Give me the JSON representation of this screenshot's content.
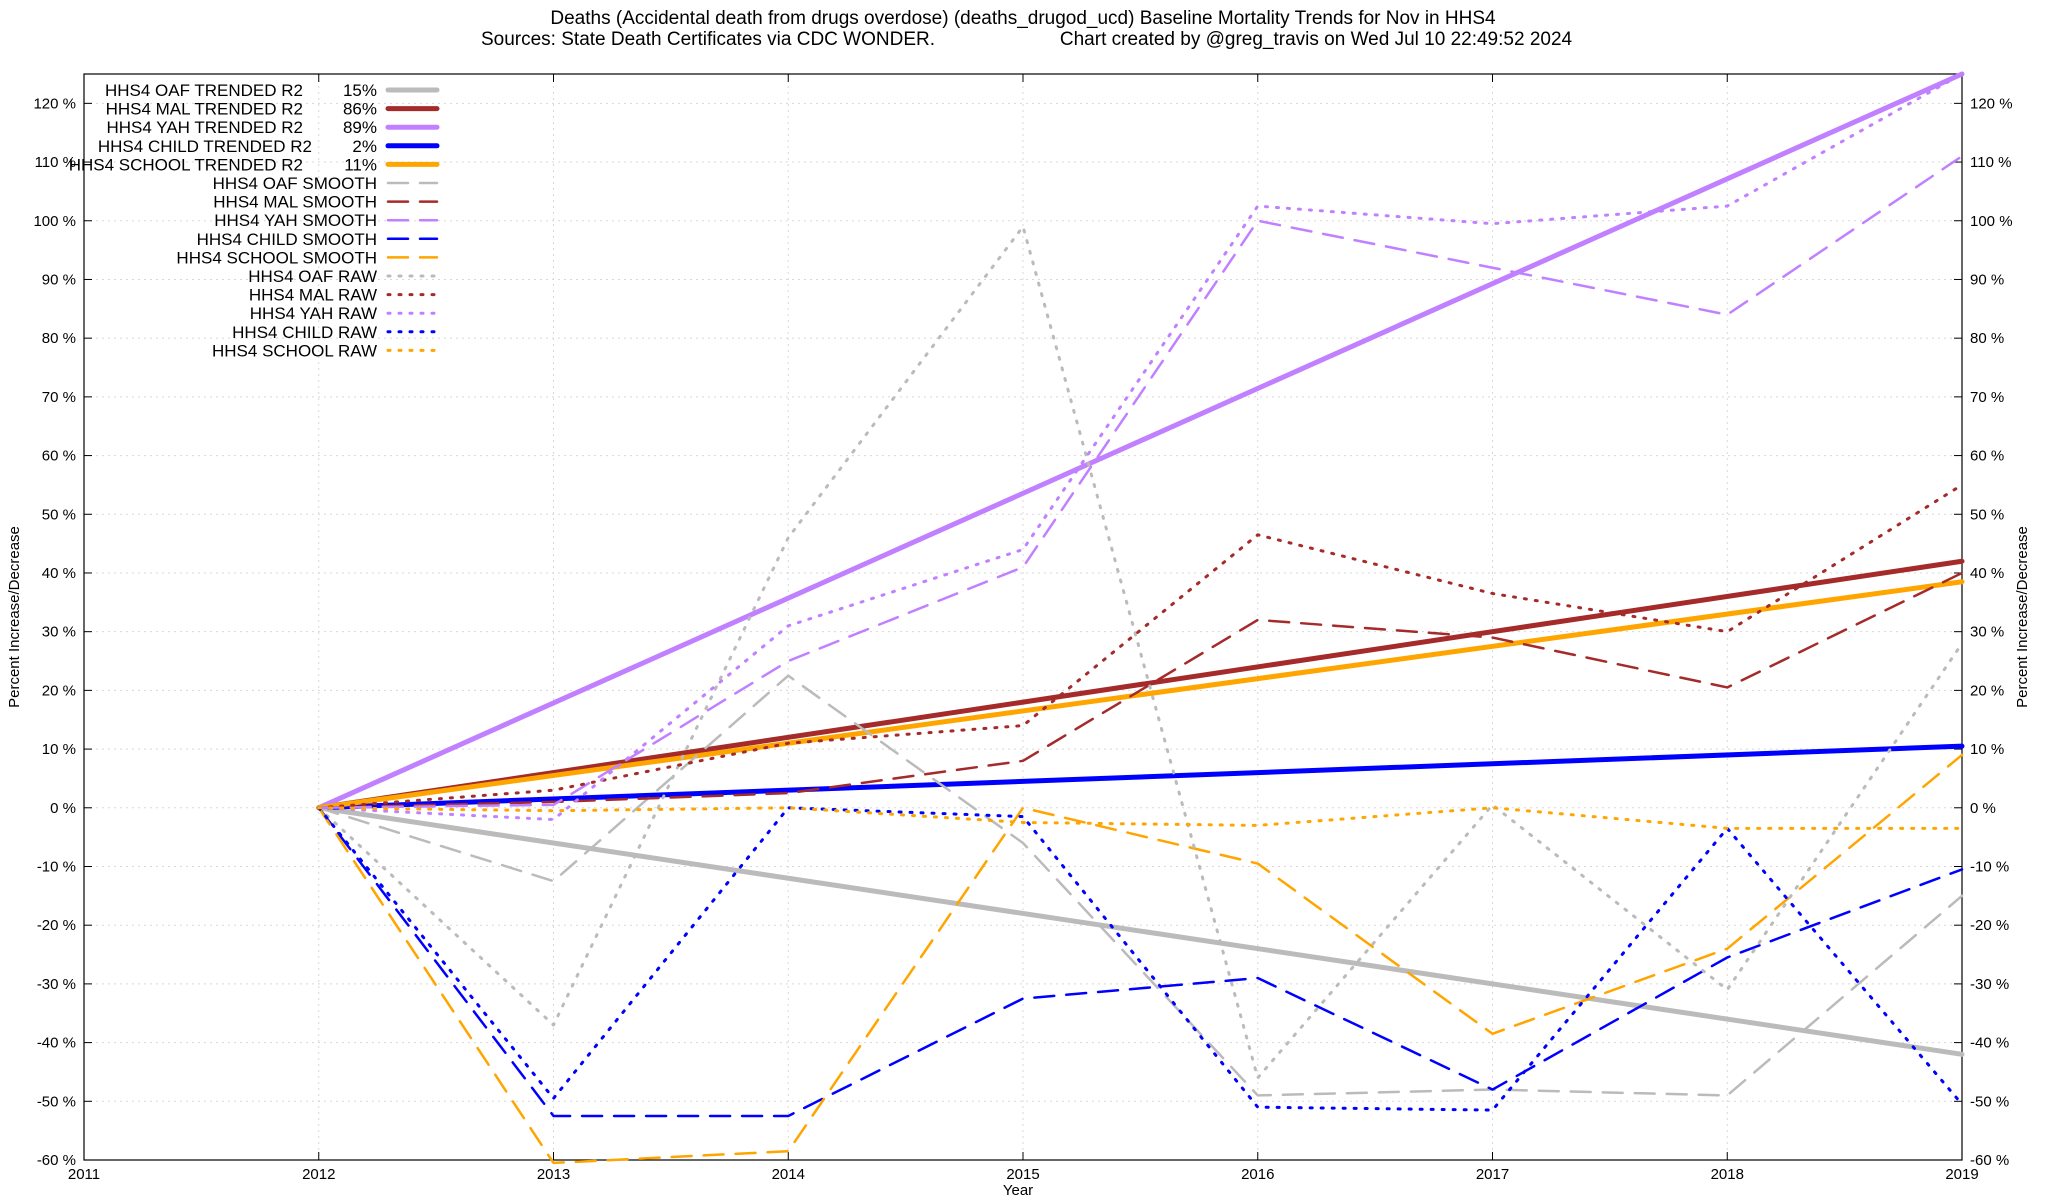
{
  "chart_data": {
    "type": "line",
    "title": "Deaths (Accidental death from drugs overdose) (deaths_drugod_ucd)  Baseline Mortality Trends for Nov in HHS4",
    "subtitle": "Sources: State Death Certificates via CDC WONDER.",
    "credit": "Chart created by @greg_travis on Wed Jul 10 22:49:52 2024",
    "xlabel": "Year",
    "ylabel": "Percent Increase/Decrease",
    "xlim": [
      2011,
      2019
    ],
    "ylim": [
      -60,
      125
    ],
    "x_ticks": [
      "2011",
      "2012",
      "2013",
      "2014",
      "2015",
      "2016",
      "2017",
      "2018",
      "2019"
    ],
    "y_ticks": [
      "-60 %",
      "-50 %",
      "-40 %",
      "-30 %",
      "-20 %",
      "-10 %",
      "0 %",
      "10 %",
      "20 %",
      "30 %",
      "40 %",
      "50 %",
      "60 %",
      "70 %",
      "80 %",
      "90 %",
      "100 %",
      "110 %",
      "120 %"
    ],
    "grid": true,
    "legend_position": "top-left",
    "series": [
      {
        "name": "HHS4 OAF TRENDED R2",
        "r2": "15%",
        "style": "solid",
        "color": "#bbbbbb",
        "x": [
          2012,
          2019
        ],
        "values": [
          0,
          -42
        ]
      },
      {
        "name": "HHS4 MAL TRENDED R2",
        "r2": "86%",
        "style": "solid",
        "color": "#a52a2a",
        "x": [
          2012,
          2019
        ],
        "values": [
          0,
          42
        ]
      },
      {
        "name": "HHS4 YAH TRENDED R2",
        "r2": "89%",
        "style": "solid",
        "color": "#c080ff",
        "x": [
          2012,
          2019
        ],
        "values": [
          0,
          125
        ]
      },
      {
        "name": "HHS4 CHILD TRENDED R2",
        "r2": "2%",
        "style": "solid",
        "color": "#0000ff",
        "x": [
          2012,
          2019
        ],
        "values": [
          0,
          10.5
        ]
      },
      {
        "name": "HHS4 SCHOOL TRENDED R2",
        "r2": "11%",
        "style": "solid",
        "color": "#ffa500",
        "x": [
          2012,
          2019
        ],
        "values": [
          0,
          38.5
        ]
      },
      {
        "name": "HHS4 OAF SMOOTH",
        "r2": "",
        "style": "dashed",
        "color": "#bbbbbb",
        "x": [
          2012,
          2013,
          2014,
          2015,
          2016,
          2017,
          2018,
          2019
        ],
        "values": [
          0,
          -12.5,
          22.5,
          -6,
          -49,
          -48,
          -49,
          -15
        ]
      },
      {
        "name": "HHS4 MAL SMOOTH",
        "r2": "",
        "style": "dashed",
        "color": "#a52a2a",
        "x": [
          2012,
          2013,
          2014,
          2015,
          2016,
          2017,
          2018,
          2019
        ],
        "values": [
          0,
          1,
          2.5,
          8,
          32,
          29,
          20.5,
          40
        ]
      },
      {
        "name": "HHS4 YAH SMOOTH",
        "r2": "",
        "style": "dashed",
        "color": "#c080ff",
        "x": [
          2012,
          2013,
          2014,
          2015,
          2016,
          2017,
          2018,
          2019
        ],
        "values": [
          0,
          0.5,
          25,
          41,
          100,
          92,
          84,
          111
        ]
      },
      {
        "name": "HHS4 CHILD SMOOTH",
        "r2": "",
        "style": "dashed",
        "color": "#0000ff",
        "x": [
          2012,
          2013,
          2014,
          2015,
          2016,
          2017,
          2018,
          2019
        ],
        "values": [
          0,
          -52.5,
          -52.5,
          -32.5,
          -29,
          -48,
          -25.5,
          -10.5
        ]
      },
      {
        "name": "HHS4 SCHOOL SMOOTH",
        "r2": "",
        "style": "dashed",
        "color": "#ffa500",
        "x": [
          2012,
          2013,
          2014,
          2015,
          2016,
          2017,
          2018,
          2019
        ],
        "values": [
          0,
          -60.5,
          -58.5,
          0,
          -9.5,
          -38.5,
          -24,
          9
        ]
      },
      {
        "name": "HHS4 OAF RAW",
        "r2": "",
        "style": "dotted",
        "color": "#bbbbbb",
        "x": [
          2012,
          2013,
          2014,
          2015,
          2016,
          2017,
          2018,
          2019
        ],
        "values": [
          0,
          -37,
          46,
          99,
          -46,
          0.5,
          -31,
          28
        ]
      },
      {
        "name": "HHS4 MAL RAW",
        "r2": "",
        "style": "dotted",
        "color": "#a52a2a",
        "x": [
          2012,
          2013,
          2014,
          2015,
          2016,
          2017,
          2018,
          2019
        ],
        "values": [
          0,
          3,
          11,
          14,
          46.5,
          36.5,
          30,
          55
        ]
      },
      {
        "name": "HHS4 YAH RAW",
        "r2": "",
        "style": "dotted",
        "color": "#c080ff",
        "x": [
          2012,
          2013,
          2014,
          2015,
          2016,
          2017,
          2018,
          2019
        ],
        "values": [
          0,
          -2,
          31,
          44,
          102.5,
          99.5,
          102.5,
          125
        ]
      },
      {
        "name": "HHS4 CHILD RAW",
        "r2": "",
        "style": "dotted",
        "color": "#0000ff",
        "x": [
          2012,
          2013,
          2014,
          2015,
          2016,
          2017,
          2018,
          2019
        ],
        "values": [
          0,
          -49.5,
          0,
          -1.5,
          -51,
          -51.5,
          -3.5,
          -50.5
        ]
      },
      {
        "name": "HHS4 SCHOOL RAW",
        "r2": "",
        "style": "dotted",
        "color": "#ffa500",
        "x": [
          2012,
          2013,
          2014,
          2015,
          2016,
          2017,
          2018,
          2019
        ],
        "values": [
          0,
          -0.5,
          0,
          -2.5,
          -3,
          0,
          -3.5,
          -3.5
        ]
      }
    ]
  }
}
